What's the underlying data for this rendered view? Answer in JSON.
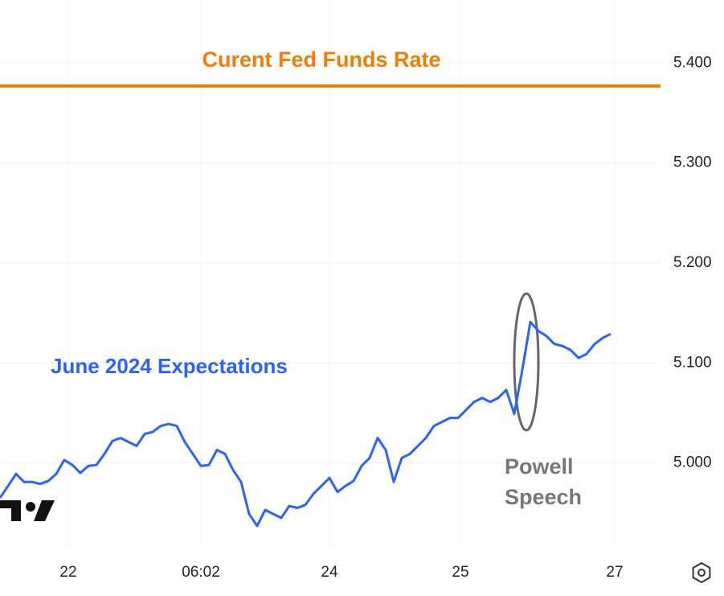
{
  "chart_data": {
    "type": "line",
    "series": [
      {
        "name": "June 2024 Expectations",
        "color": "#2962ff",
        "values": [
          4.965,
          4.977,
          4.989,
          4.981,
          4.981,
          4.979,
          4.982,
          4.989,
          5.003,
          4.998,
          4.99,
          4.997,
          4.998,
          5.009,
          5.022,
          5.025,
          5.021,
          5.017,
          5.029,
          5.031,
          5.037,
          5.039,
          5.037,
          5.021,
          5.009,
          4.997,
          4.998,
          5.013,
          5.009,
          4.993,
          4.981,
          4.949,
          4.937,
          4.953,
          4.949,
          4.945,
          4.957,
          4.955,
          4.958,
          4.969,
          4.977,
          4.985,
          4.971,
          4.977,
          4.982,
          4.997,
          5.005,
          5.025,
          5.013,
          4.981,
          5.005,
          5.009,
          5.017,
          5.025,
          5.037,
          5.041,
          5.045,
          5.045,
          5.053,
          5.061,
          5.065,
          5.061,
          5.065,
          5.073,
          5.049,
          5.093,
          5.141,
          5.132,
          5.127,
          5.119,
          5.117,
          5.113,
          5.105,
          5.109,
          5.119,
          5.125,
          5.129
        ]
      }
    ],
    "reference_line": {
      "name": "Curent Fed Funds Rate",
      "value": 5.377,
      "color": "#f57c00"
    },
    "annotation": [
      "Powell",
      "Speech"
    ],
    "xlim": [
      0,
      82.2
    ],
    "xticks": [
      {
        "value": 8.5,
        "label": "22"
      },
      {
        "value": 25,
        "label": "06:02"
      },
      {
        "value": 41,
        "label": "24"
      },
      {
        "value": 57.3,
        "label": "25"
      },
      {
        "value": 76.5,
        "label": "27"
      }
    ],
    "ylim": [
      4.916,
      5.463
    ],
    "yticks": [
      {
        "value": 5.4,
        "label": "5.400"
      },
      {
        "value": 5.3,
        "label": "5.300"
      },
      {
        "value": 5.2,
        "label": "5.200"
      },
      {
        "value": 5.1,
        "label": "5.100"
      },
      {
        "value": 5.0,
        "label": "5.000"
      }
    ],
    "grid": true
  }
}
